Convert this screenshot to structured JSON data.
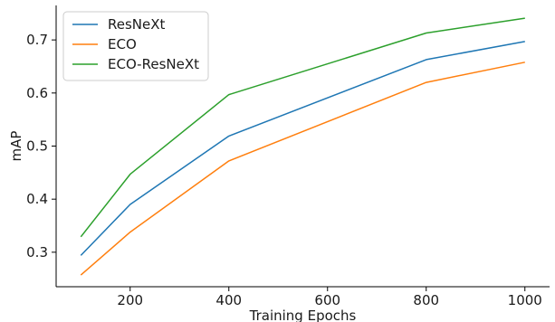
{
  "chart_data": {
    "type": "line",
    "title": "",
    "xlabel": "Training Epochs",
    "ylabel": "mAP",
    "x": [
      100,
      200,
      400,
      800,
      1000
    ],
    "xticks": [
      200,
      400,
      600,
      800,
      1000
    ],
    "yticks": [
      0.3,
      0.4,
      0.5,
      0.6,
      0.7
    ],
    "xlim": [
      50,
      1050
    ],
    "ylim": [
      0.235,
      0.765
    ],
    "grid": false,
    "legend_position": "top-left",
    "series": [
      {
        "name": "ResNeXt",
        "color": "#1f77b4",
        "values": [
          0.294,
          0.39,
          0.519,
          0.663,
          0.697
        ]
      },
      {
        "name": "ECO",
        "color": "#ff7f0e",
        "values": [
          0.257,
          0.338,
          0.472,
          0.62,
          0.658
        ]
      },
      {
        "name": "ECO-ResNeXt",
        "color": "#2ca02c",
        "values": [
          0.329,
          0.447,
          0.597,
          0.713,
          0.741
        ]
      }
    ]
  }
}
